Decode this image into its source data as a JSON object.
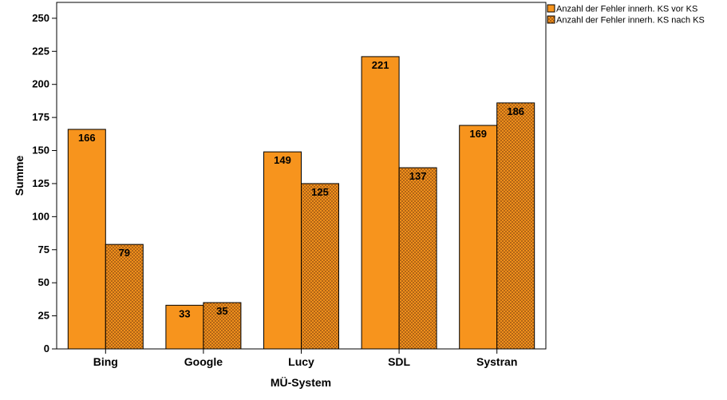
{
  "chart_data": {
    "type": "bar",
    "categories": [
      "Bing",
      "Google",
      "Lucy",
      "SDL",
      "Systran"
    ],
    "series": [
      {
        "name": "Anzahl der Fehler innerh. KS vor KS",
        "values": [
          166,
          33,
          149,
          221,
          169
        ],
        "color": "#f7941d",
        "pattern": "solid"
      },
      {
        "name": "Anzahl der Fehler innerh. KS nach KS",
        "values": [
          79,
          35,
          125,
          137,
          186
        ],
        "color": "#f7941d",
        "pattern": "crosshatch"
      }
    ],
    "title": "",
    "xlabel": "MÜ-System",
    "ylabel": "Summe",
    "ylim": [
      0,
      262
    ],
    "yticks": [
      0,
      25,
      50,
      75,
      100,
      125,
      150,
      175,
      200,
      225,
      250
    ],
    "grid": false,
    "legend": "top-right",
    "show_data_labels": true
  }
}
